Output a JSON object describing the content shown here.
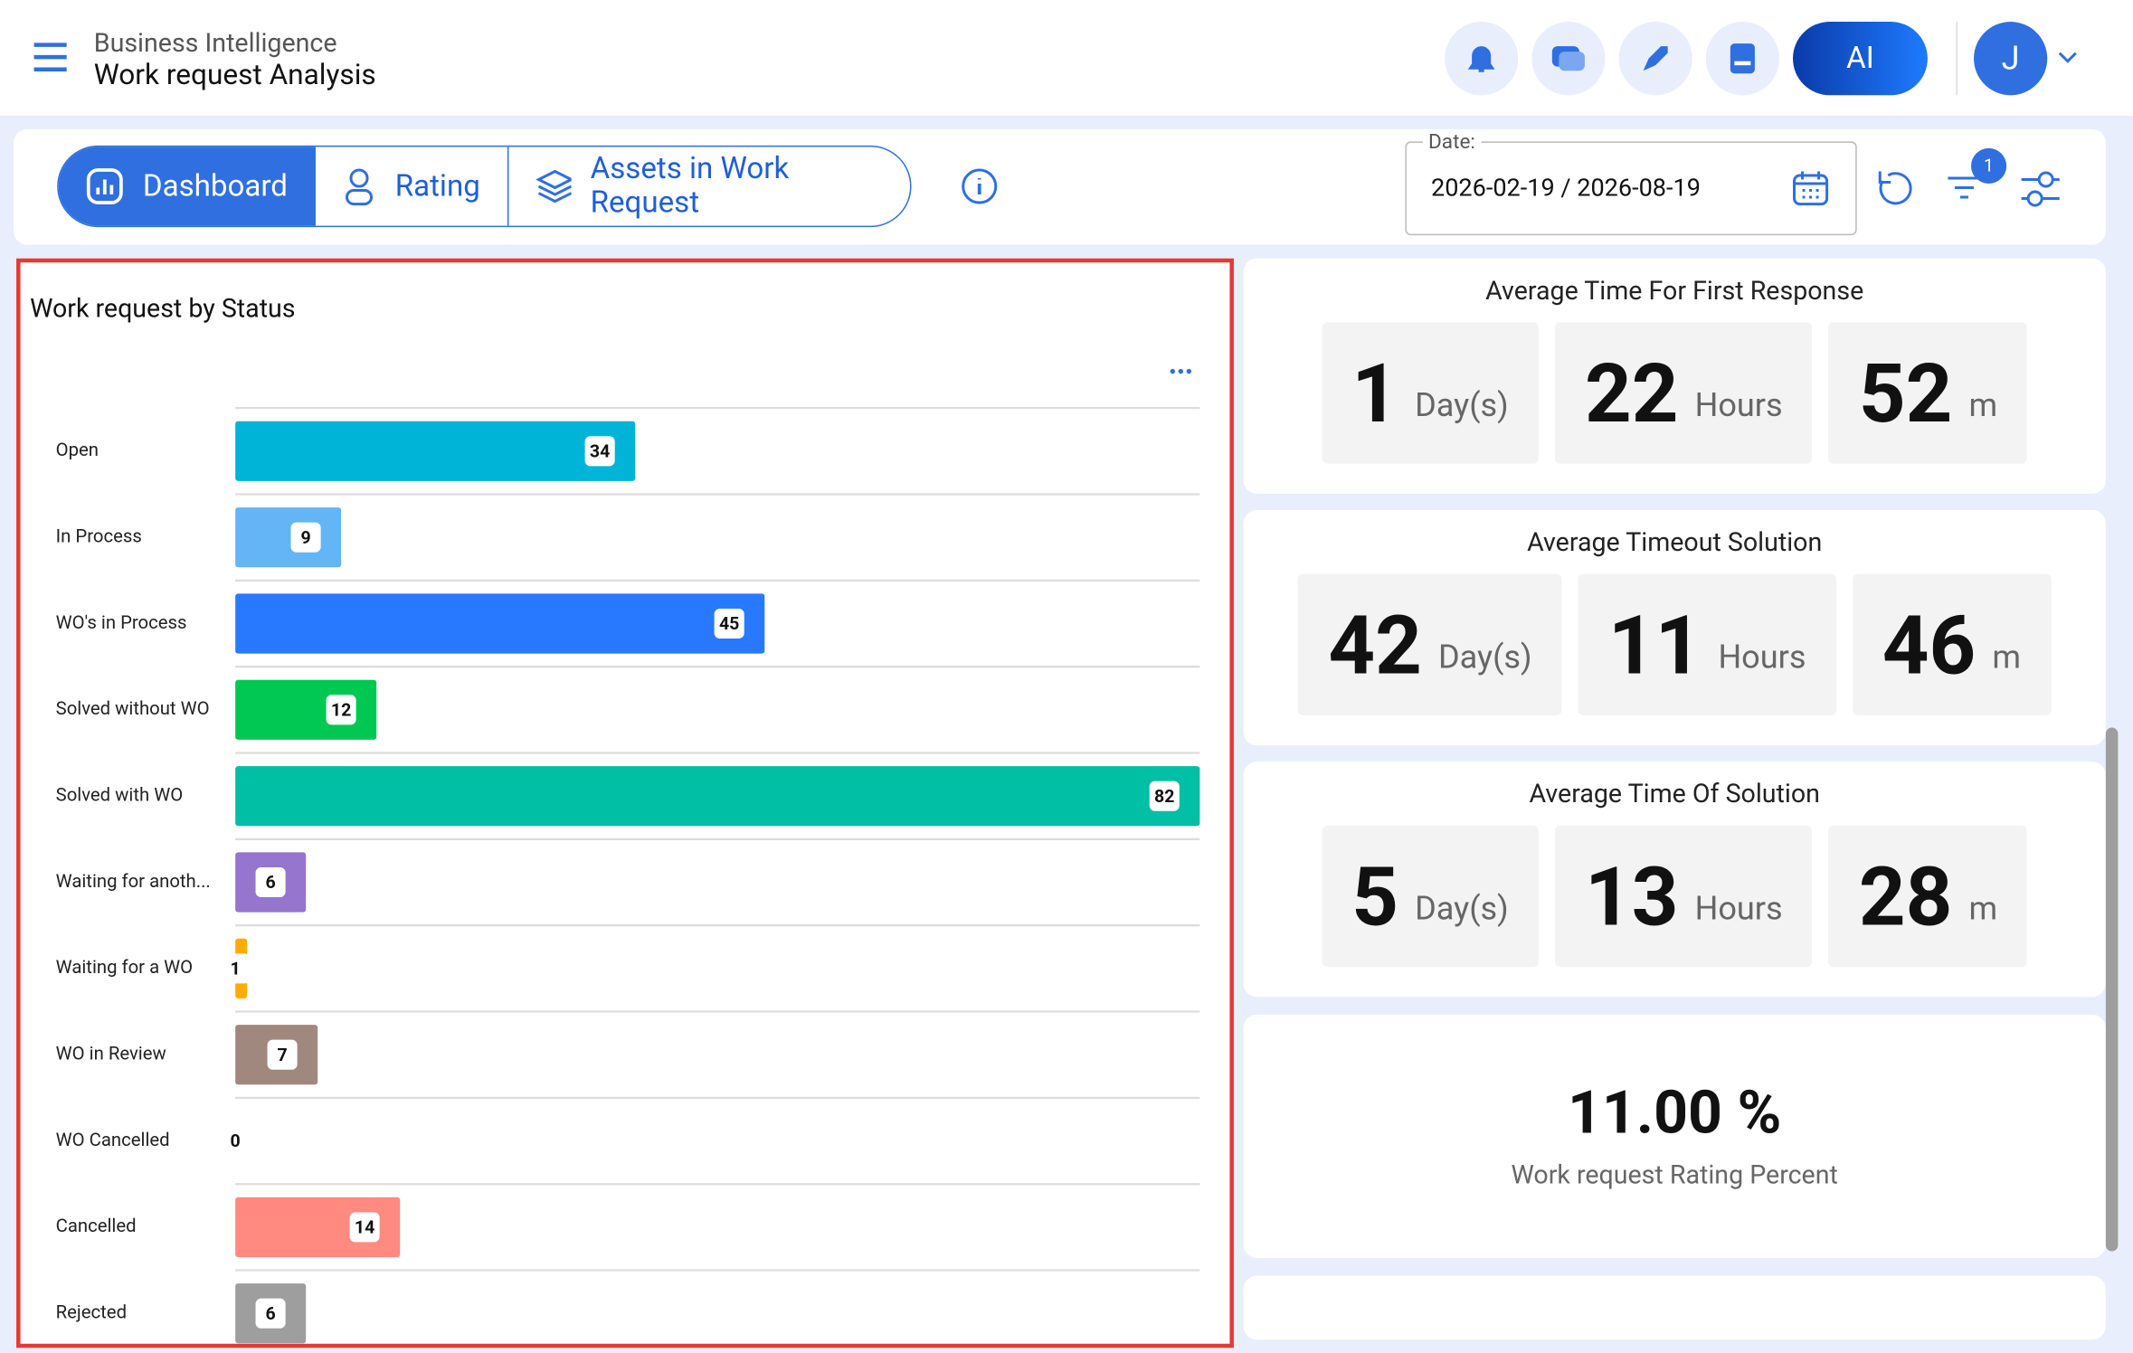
{
  "header": {
    "app": "Business Intelligence",
    "title": "Work request Analysis",
    "ai": "AI",
    "avatar": "J"
  },
  "tabs": [
    "Dashboard",
    "Rating",
    "Assets in Work Request"
  ],
  "date": {
    "label": "Date:",
    "value": "2026-02-19 / 2026-08-19"
  },
  "filter_badge": "1",
  "chart_data": {
    "type": "bar",
    "orientation": "horizontal",
    "title": "Work request by Status",
    "categories": [
      "Open",
      "In Process",
      "WO's in Process",
      "Solved without WO",
      "Solved with WO",
      "Waiting for anoth...",
      "Waiting for a WO",
      "WO in Review",
      "WO Cancelled",
      "Cancelled",
      "Rejected"
    ],
    "values": [
      34,
      9,
      45,
      12,
      82,
      6,
      1,
      7,
      0,
      14,
      6
    ],
    "colors": [
      "#00b4d8",
      "#64b5f6",
      "#2979ff",
      "#00c853",
      "#00bfa5",
      "#9575cd",
      "#ffab00",
      "#a1887f",
      "#9e9e9e",
      "#ff8a80",
      "#9e9e9e"
    ]
  },
  "stats": [
    {
      "title": "Average Time For First Response",
      "parts": [
        {
          "value": "1",
          "unit": "Day(s)"
        },
        {
          "value": "22",
          "unit": "Hours"
        },
        {
          "value": "52",
          "unit": "m"
        }
      ]
    },
    {
      "title": "Average Timeout Solution",
      "parts": [
        {
          "value": "42",
          "unit": "Day(s)"
        },
        {
          "value": "11",
          "unit": "Hours"
        },
        {
          "value": "46",
          "unit": "m"
        }
      ]
    },
    {
      "title": "Average Time Of Solution",
      "parts": [
        {
          "value": "5",
          "unit": "Day(s)"
        },
        {
          "value": "13",
          "unit": "Hours"
        },
        {
          "value": "28",
          "unit": "m"
        }
      ]
    }
  ],
  "rating": {
    "value": "11.00 %",
    "label": "Work request Rating Percent"
  }
}
